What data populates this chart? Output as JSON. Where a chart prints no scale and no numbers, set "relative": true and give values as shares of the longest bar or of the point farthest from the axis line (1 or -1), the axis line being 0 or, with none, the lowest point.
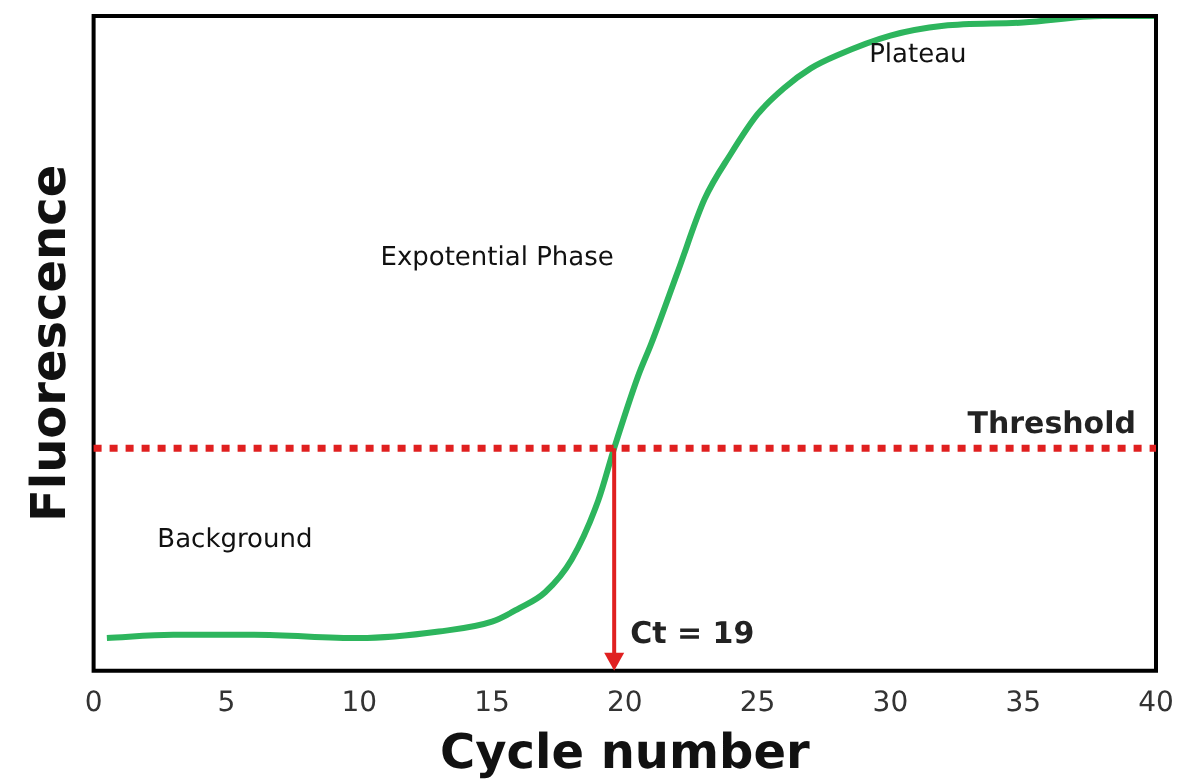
{
  "chart_data": {
    "type": "line",
    "xlabel": "Cycle number",
    "ylabel": "Fluorescence",
    "relative": true,
    "xlim": [
      0,
      40
    ],
    "xticks": [
      0,
      5,
      10,
      15,
      20,
      25,
      30,
      35,
      40
    ],
    "grid": false,
    "legend": false,
    "marker": "none",
    "line_style": "solid",
    "series": [
      {
        "color": "#2db55d",
        "x": [
          0.5,
          3,
          6,
          10,
          13,
          15,
          16,
          17,
          18,
          19,
          19.6,
          20.5,
          21,
          22,
          23,
          24,
          25,
          26,
          27,
          28,
          30,
          32,
          35,
          38,
          40
        ],
        "values": [
          0.05,
          0.055,
          0.055,
          0.05,
          0.06,
          0.075,
          0.095,
          0.12,
          0.17,
          0.26,
          0.34,
          0.45,
          0.5,
          0.61,
          0.72,
          0.79,
          0.85,
          0.89,
          0.92,
          0.94,
          0.97,
          0.985,
          0.99,
          1.0,
          1.0
        ]
      }
    ],
    "ref_lines": [
      {
        "axis": "y",
        "value": 0.34,
        "label": "Threshold",
        "color": "#e02020",
        "line_style": "dotted"
      }
    ],
    "annotations": [
      {
        "text": "Ct = 19",
        "x": 19.6,
        "y": 0.34
      },
      "Background",
      "Expotential Phase",
      "Plateau"
    ]
  }
}
